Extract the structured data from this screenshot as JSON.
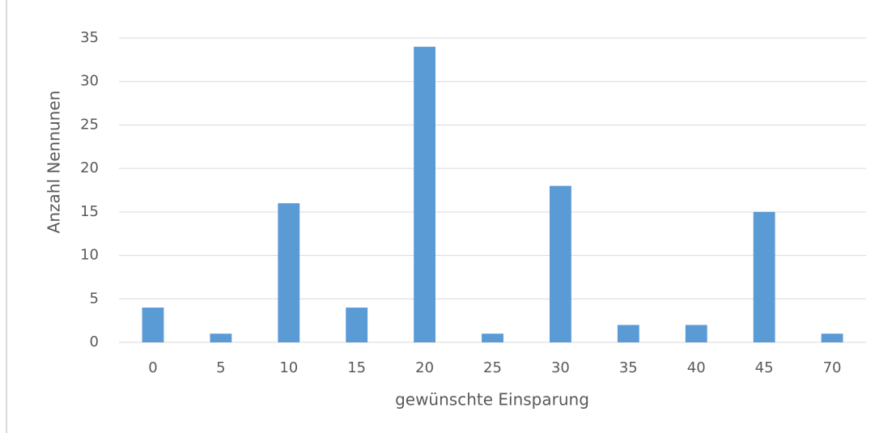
{
  "chart_data": {
    "type": "bar",
    "categories": [
      "0",
      "5",
      "10",
      "15",
      "20",
      "25",
      "30",
      "35",
      "40",
      "45",
      "70"
    ],
    "values": [
      4,
      1,
      16,
      4,
      34,
      1,
      18,
      2,
      2,
      15,
      1
    ],
    "color": "#5b9bd5",
    "xlabel": "gewünschte Einsparung",
    "ylabel": "Anzahl Nennunen",
    "ylim": [
      0,
      35
    ],
    "yticks": [
      0,
      5,
      10,
      15,
      20,
      25,
      30,
      35
    ],
    "grid": true
  }
}
